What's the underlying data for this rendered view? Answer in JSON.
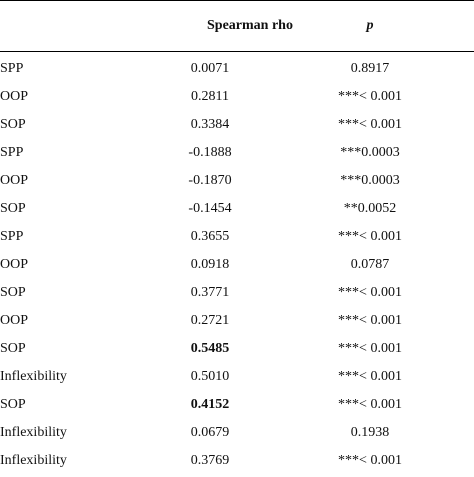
{
  "table": {
    "headers": {
      "rho": "Spearman rho",
      "p": "p",
      "clipped": ""
    },
    "rows": [
      {
        "label": "SPP",
        "rho": "0.0071",
        "p": "0.8917",
        "bold": false
      },
      {
        "label": "OOP",
        "rho": "0.2811",
        "p": "***< 0.001",
        "bold": false
      },
      {
        "label": "SOP",
        "rho": "0.3384",
        "p": "***< 0.001",
        "bold": false
      },
      {
        "label": "SPP",
        "rho": "-0.1888",
        "p": "***0.0003",
        "bold": false
      },
      {
        "label": "OOP",
        "rho": "-0.1870",
        "p": "***0.0003",
        "bold": false
      },
      {
        "label": "SOP",
        "rho": "-0.1454",
        "p": "**0.0052",
        "bold": false
      },
      {
        "label": "SPP",
        "rho": "0.3655",
        "p": "***< 0.001",
        "bold": false
      },
      {
        "label": "OOP",
        "rho": "0.0918",
        "p": "0.0787",
        "bold": false
      },
      {
        "label": "SOP",
        "rho": "0.3771",
        "p": "***< 0.001",
        "bold": false
      },
      {
        "label": "OOP",
        "rho": "0.2721",
        "p": "***< 0.001",
        "bold": false
      },
      {
        "label": "SOP",
        "rho": "0.5485",
        "p": "***< 0.001",
        "bold": true
      },
      {
        "label": "Inflexibility",
        "rho": "0.5010",
        "p": "***< 0.001",
        "bold": false
      },
      {
        "label": "SOP",
        "rho": "0.4152",
        "p": "***< 0.001",
        "bold": true
      },
      {
        "label": "Inflexibility",
        "rho": "0.0679",
        "p": "0.1938",
        "bold": false
      },
      {
        "label": "Inflexibility",
        "rho": "0.3769",
        "p": "***< 0.001",
        "bold": false
      }
    ]
  }
}
